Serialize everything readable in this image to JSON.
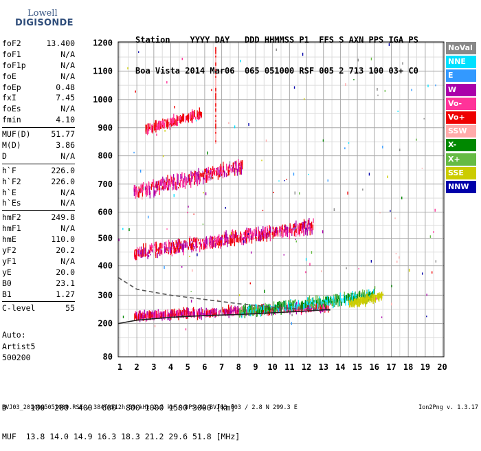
{
  "logo": {
    "line1": "Lowell",
    "line2": "DIGISONDE"
  },
  "header": {
    "line1": "Station    YYYY DAY   DDD HHMMSS P1  FFS S AXN PPS IGA PS",
    "line2": "Boa Vista 2014 Mar06  065 051000 RSF 005 2 713 100 03+ C0"
  },
  "params": [
    [
      {
        "name": "foF2",
        "value": "13.400"
      },
      {
        "name": "foF1",
        "value": "N/A"
      },
      {
        "name": "foF1p",
        "value": "N/A"
      },
      {
        "name": "foE",
        "value": "N/A"
      },
      {
        "name": "foEp",
        "value": "0.48"
      },
      {
        "name": "fxI",
        "value": "7.45"
      },
      {
        "name": "foEs",
        "value": "N/A"
      },
      {
        "name": "fmin",
        "value": "4.10"
      }
    ],
    [
      {
        "name": "MUF(D)",
        "value": "51.77"
      },
      {
        "name": "M(D)",
        "value": "3.86"
      },
      {
        "name": "D",
        "value": "N/A"
      }
    ],
    [
      {
        "name": "h`F",
        "value": "226.0"
      },
      {
        "name": "h`F2",
        "value": "226.0"
      },
      {
        "name": "h`E",
        "value": "N/A"
      },
      {
        "name": "h`Es",
        "value": "N/A"
      }
    ],
    [
      {
        "name": "hmF2",
        "value": "249.8"
      },
      {
        "name": "hmF1",
        "value": "N/A"
      },
      {
        "name": "hmE",
        "value": "110.0"
      },
      {
        "name": "yF2",
        "value": "20.2"
      },
      {
        "name": "yF1",
        "value": "N/A"
      },
      {
        "name": "yE",
        "value": "20.0"
      },
      {
        "name": "B0",
        "value": "23.1"
      },
      {
        "name": "B1",
        "value": "1.27"
      }
    ],
    [
      {
        "name": "C-level",
        "value": "55"
      }
    ]
  ],
  "notes": {
    "line1": "Auto:",
    "line2": "Artist5",
    "line3": "500200"
  },
  "bottom": {
    "d_line": "D     100  200  400  600  800 1000 1500 3000 [km]",
    "muf_line": "MUF  13.8 14.0 14.9 16.3 18.3 21.2 29.6 51.8 [MHz]"
  },
  "footer": "BVJ03_2014065051000.RSF / 384fx512h 50 kHz 2.5 km / DPS-4D BVJ03 003 / 2.8 N 299.3 E",
  "version": "Ion2Png v. 1.3.17",
  "legend": [
    {
      "label": "NoVal",
      "color": "#888888"
    },
    {
      "label": "NNE",
      "color": "#00e0ff"
    },
    {
      "label": "E",
      "color": "#3399ff"
    },
    {
      "label": "W",
      "color": "#aa00aa"
    },
    {
      "label": "Vo-",
      "color": "#ff3399"
    },
    {
      "label": "Vo+",
      "color": "#ee0000"
    },
    {
      "label": "SSW",
      "color": "#ffaaaa"
    },
    {
      "label": "X-",
      "color": "#008800"
    },
    {
      "label": "X+",
      "color": "#66bb44"
    },
    {
      "label": "SSE",
      "color": "#cccc00"
    },
    {
      "label": "NNW",
      "color": "#0000aa"
    }
  ],
  "chart_data": {
    "type": "scatter",
    "x_ticks": [
      1,
      2,
      3,
      4,
      5,
      6,
      7,
      8,
      9,
      10,
      11,
      12,
      13,
      14,
      15,
      16,
      17,
      18,
      19,
      20
    ],
    "y_ticks": [
      80,
      200,
      300,
      400,
      500,
      600,
      700,
      800,
      900,
      1000,
      1100,
      1200
    ],
    "xlim": [
      0.9,
      20.1
    ],
    "ylim": [
      80,
      1210
    ],
    "grid": true,
    "y_scale": "log-like (ionogram height axis)",
    "traces": [
      {
        "name": "O-trace F2 (1st hop)",
        "colors": [
          "#ee0000",
          "#ff3399",
          "#aa00aa"
        ],
        "x_range": [
          1.8,
          13.4
        ],
        "y_range": [
          225,
          260
        ]
      },
      {
        "name": "X-trace / spread",
        "colors": [
          "#008800",
          "#66bb44",
          "#00e0ff"
        ],
        "x_range": [
          8,
          16
        ],
        "y_range": [
          240,
          300
        ]
      },
      {
        "name": "SSE echoes",
        "colors": [
          "#cccc00"
        ],
        "x_range": [
          14.5,
          16.5
        ],
        "y_range": [
          270,
          300
        ]
      },
      {
        "name": "2nd hop",
        "colors": [
          "#ee0000",
          "#ff3399",
          "#aa00aa"
        ],
        "x_range": [
          1.8,
          12.4
        ],
        "y_range": [
          445,
          545
        ]
      },
      {
        "name": "3rd hop",
        "colors": [
          "#ee0000",
          "#ff3399",
          "#aa00aa"
        ],
        "x_range": [
          1.8,
          8.2
        ],
        "y_range": [
          668,
          765
        ]
      },
      {
        "name": "4th hop",
        "colors": [
          "#ee0000",
          "#ff3399"
        ],
        "x_range": [
          2.5,
          5.8
        ],
        "y_range": [
          895,
          950
        ]
      }
    ],
    "profile_lines": [
      {
        "name": "dashed model profile",
        "style": "dashed",
        "points": [
          [
            0.9,
            360
          ],
          [
            2,
            320
          ],
          [
            4,
            300
          ],
          [
            6,
            285
          ],
          [
            8,
            270
          ],
          [
            10,
            258
          ],
          [
            12,
            250
          ],
          [
            13.4,
            247
          ]
        ]
      },
      {
        "name": "solid model profile",
        "style": "solid",
        "points": [
          [
            0.9,
            200
          ],
          [
            2,
            212
          ],
          [
            4,
            222
          ],
          [
            6,
            228
          ],
          [
            8,
            232
          ],
          [
            10,
            238
          ],
          [
            12,
            244
          ],
          [
            13.4,
            250
          ]
        ]
      }
    ]
  }
}
